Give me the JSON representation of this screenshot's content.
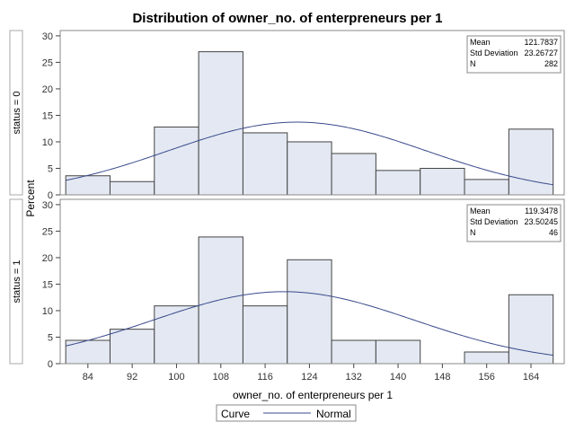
{
  "chart_data": {
    "type": "bar",
    "title": "Distribution of owner_no. of enterpreneurs per 1",
    "xlabel": "owner_no. of enterpreneurs per 1",
    "ylabel": "Percent",
    "bin_width": 8,
    "bin_starts": [
      80,
      88,
      96,
      104,
      112,
      120,
      128,
      136,
      144,
      152,
      160
    ],
    "xlim": [
      79,
      170
    ],
    "ylim": [
      0,
      31
    ],
    "x_ticks": [
      "84",
      "92",
      "100",
      "108",
      "116",
      "124",
      "132",
      "140",
      "148",
      "156",
      "164"
    ],
    "y_ticks": [
      "0",
      "5",
      "10",
      "15",
      "20",
      "25",
      "30"
    ],
    "grid": false,
    "colors": {
      "bar_fill": "#e3e8f2",
      "bar_stroke": "#444444",
      "curve": "#3a4a8c",
      "frame": "#888888"
    },
    "panels": [
      {
        "strip": "status = 0",
        "values": [
          3.6,
          2.5,
          12.8,
          27.0,
          11.7,
          10.0,
          7.8,
          4.6,
          5.0,
          2.9,
          12.4
        ],
        "stats": [
          {
            "label": "Mean",
            "value": "121.7837"
          },
          {
            "label": "Std Deviation",
            "value": "23.26727"
          },
          {
            "label": "N",
            "value": "282"
          }
        ],
        "mean": 121.7837,
        "sd": 23.26727
      },
      {
        "strip": "status = 1",
        "values": [
          4.4,
          6.5,
          10.9,
          23.9,
          10.9,
          19.6,
          4.4,
          4.4,
          0,
          2.2,
          13.0
        ],
        "stats": [
          {
            "label": "Mean",
            "value": "119.3478"
          },
          {
            "label": "Std Deviation",
            "value": "23.50245"
          },
          {
            "label": "N",
            "value": "46"
          }
        ],
        "mean": 119.3478,
        "sd": 23.50245
      }
    ],
    "legend": {
      "position": "bottom",
      "title": "Curve",
      "entries": [
        {
          "name": "Normal"
        }
      ]
    }
  }
}
